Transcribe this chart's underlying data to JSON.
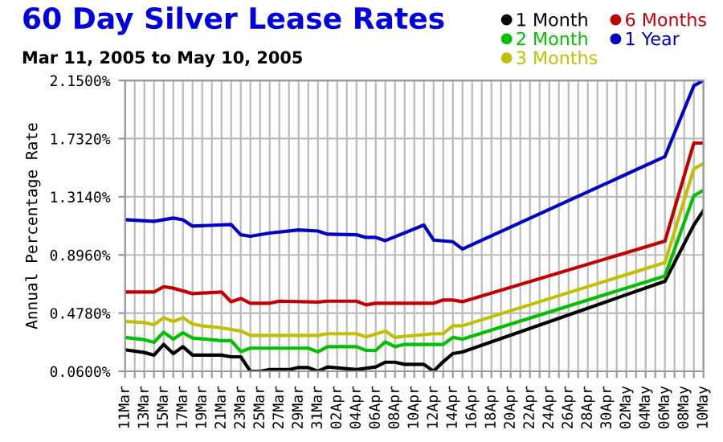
{
  "chart_data": {
    "type": "line",
    "title": "60 Day Silver Lease Rates",
    "subtitle": "Mar 11, 2005 to May 10, 2005",
    "ylabel": "Annual Percentage Rate",
    "xlim": [
      "2005-03-11",
      "2005-05-10"
    ],
    "xticks": [
      {
        "value": "2005-03-11",
        "label": "11Mar"
      },
      {
        "value": "2005-03-12",
        "label": null
      },
      {
        "value": "2005-03-13",
        "label": "13Mar"
      },
      {
        "value": "2005-03-14",
        "label": null
      },
      {
        "value": "2005-03-15",
        "label": "15Mar"
      },
      {
        "value": "2005-03-16",
        "label": null
      },
      {
        "value": "2005-03-17",
        "label": "17Mar"
      },
      {
        "value": "2005-03-18",
        "label": null
      },
      {
        "value": "2005-03-19",
        "label": "19Mar"
      },
      {
        "value": "2005-03-20",
        "label": null
      },
      {
        "value": "2005-03-21",
        "label": "21Mar"
      },
      {
        "value": "2005-03-22",
        "label": null
      },
      {
        "value": "2005-03-23",
        "label": "23Mar"
      },
      {
        "value": "2005-03-24",
        "label": null
      },
      {
        "value": "2005-03-25",
        "label": "25Mar"
      },
      {
        "value": "2005-03-26",
        "label": null
      },
      {
        "value": "2005-03-27",
        "label": "27Mar"
      },
      {
        "value": "2005-03-28",
        "label": null
      },
      {
        "value": "2005-03-29",
        "label": "29Mar"
      },
      {
        "value": "2005-03-30",
        "label": null
      },
      {
        "value": "2005-03-31",
        "label": "31Mar"
      },
      {
        "value": "2005-04-01",
        "label": null
      },
      {
        "value": "2005-04-02",
        "label": "02Apr"
      },
      {
        "value": "2005-04-03",
        "label": null
      },
      {
        "value": "2005-04-04",
        "label": "04Apr"
      },
      {
        "value": "2005-04-05",
        "label": null
      },
      {
        "value": "2005-04-06",
        "label": "06Apr"
      },
      {
        "value": "2005-04-07",
        "label": null
      },
      {
        "value": "2005-04-08",
        "label": "08Apr"
      },
      {
        "value": "2005-04-09",
        "label": null
      },
      {
        "value": "2005-04-10",
        "label": "10Apr"
      },
      {
        "value": "2005-04-11",
        "label": null
      },
      {
        "value": "2005-04-12",
        "label": "12Apr"
      },
      {
        "value": "2005-04-13",
        "label": null
      },
      {
        "value": "2005-04-14",
        "label": "14Apr"
      },
      {
        "value": "2005-04-15",
        "label": null
      },
      {
        "value": "2005-04-16",
        "label": "16Apr"
      },
      {
        "value": "2005-04-17",
        "label": null
      },
      {
        "value": "2005-04-18",
        "label": "18Apr"
      },
      {
        "value": "2005-04-19",
        "label": null
      },
      {
        "value": "2005-04-20",
        "label": "20Apr"
      },
      {
        "value": "2005-04-21",
        "label": null
      },
      {
        "value": "2005-04-22",
        "label": "22Apr"
      },
      {
        "value": "2005-04-23",
        "label": null
      },
      {
        "value": "2005-04-24",
        "label": "24Apr"
      },
      {
        "value": "2005-04-25",
        "label": null
      },
      {
        "value": "2005-04-26",
        "label": "26Apr"
      },
      {
        "value": "2005-04-27",
        "label": null
      },
      {
        "value": "2005-04-28",
        "label": "28Apr"
      },
      {
        "value": "2005-04-29",
        "label": null
      },
      {
        "value": "2005-04-30",
        "label": "30Apr"
      },
      {
        "value": "2005-05-01",
        "label": null
      },
      {
        "value": "2005-05-02",
        "label": "02May"
      },
      {
        "value": "2005-05-03",
        "label": null
      },
      {
        "value": "2005-05-04",
        "label": "04May"
      },
      {
        "value": "2005-05-05",
        "label": null
      },
      {
        "value": "2005-05-06",
        "label": "06May"
      },
      {
        "value": "2005-05-07",
        "label": null
      },
      {
        "value": "2005-05-08",
        "label": "08May"
      },
      {
        "value": "2005-05-09",
        "label": null
      },
      {
        "value": "2005-05-10",
        "label": "10May"
      }
    ],
    "ylim": [
      0.06,
      2.15
    ],
    "yticks": [
      {
        "value": 0.06,
        "label": "0.0600%"
      },
      {
        "value": 0.478,
        "label": "0.4780%"
      },
      {
        "value": 0.896,
        "label": "0.8960%"
      },
      {
        "value": 1.314,
        "label": "1.3140%"
      },
      {
        "value": 1.732,
        "label": "1.7320%"
      },
      {
        "value": 2.15,
        "label": "2.1500%"
      }
    ],
    "grid": true,
    "legend": "top right",
    "marker": "none",
    "line_style": "solid",
    "series": [
      {
        "name": "1 Month",
        "color": "#000000",
        "x": [
          "2005-03-11",
          "2005-03-13",
          "2005-03-14",
          "2005-03-15",
          "2005-03-16",
          "2005-03-17",
          "2005-03-18",
          "2005-03-21",
          "2005-03-22",
          "2005-03-23",
          "2005-03-24",
          "2005-03-25",
          "2005-03-26",
          "2005-03-28",
          "2005-03-29",
          "2005-03-30",
          "2005-03-31",
          "2005-04-01",
          "2005-04-04",
          "2005-04-06",
          "2005-04-07",
          "2005-04-08",
          "2005-04-09",
          "2005-04-11",
          "2005-04-12",
          "2005-04-13",
          "2005-04-14",
          "2005-04-15",
          "2005-05-06",
          "2005-05-09",
          "2005-05-10"
        ],
        "values": [
          0.214,
          0.195,
          0.176,
          0.253,
          0.187,
          0.237,
          0.176,
          0.176,
          0.164,
          0.164,
          0.06,
          0.06,
          0.072,
          0.072,
          0.087,
          0.087,
          0.06,
          0.091,
          0.072,
          0.091,
          0.125,
          0.125,
          0.11,
          0.11,
          0.06,
          0.129,
          0.187,
          0.199,
          0.707,
          1.111,
          1.215
        ]
      },
      {
        "name": "2 Month",
        "color": "#00c000",
        "x": [
          "2005-03-11",
          "2005-03-13",
          "2005-03-14",
          "2005-03-15",
          "2005-03-16",
          "2005-03-17",
          "2005-03-18",
          "2005-03-21",
          "2005-03-22",
          "2005-03-23",
          "2005-03-24",
          "2005-03-30",
          "2005-03-31",
          "2005-04-01",
          "2005-04-04",
          "2005-04-05",
          "2005-04-06",
          "2005-04-07",
          "2005-04-08",
          "2005-04-09",
          "2005-04-13",
          "2005-04-14",
          "2005-04-15",
          "2005-05-06",
          "2005-05-09",
          "2005-05-10"
        ],
        "values": [
          0.303,
          0.287,
          0.268,
          0.341,
          0.291,
          0.337,
          0.299,
          0.28,
          0.28,
          0.202,
          0.226,
          0.226,
          0.199,
          0.237,
          0.237,
          0.21,
          0.21,
          0.272,
          0.237,
          0.253,
          0.253,
          0.303,
          0.291,
          0.745,
          1.322,
          1.361
        ]
      },
      {
        "name": "3 Months",
        "color": "#c0c000",
        "x": [
          "2005-03-11",
          "2005-03-13",
          "2005-03-14",
          "2005-03-15",
          "2005-03-16",
          "2005-03-17",
          "2005-03-18",
          "2005-03-19",
          "2005-03-21",
          "2005-03-23",
          "2005-03-24",
          "2005-03-31",
          "2005-04-01",
          "2005-04-04",
          "2005-04-05",
          "2005-04-07",
          "2005-04-08",
          "2005-04-09",
          "2005-04-12",
          "2005-04-13",
          "2005-04-14",
          "2005-04-15",
          "2005-05-06",
          "2005-05-09",
          "2005-05-10"
        ],
        "values": [
          0.418,
          0.41,
          0.395,
          0.445,
          0.418,
          0.445,
          0.399,
          0.387,
          0.372,
          0.349,
          0.318,
          0.318,
          0.33,
          0.33,
          0.307,
          0.349,
          0.303,
          0.311,
          0.33,
          0.33,
          0.387,
          0.387,
          0.841,
          1.515,
          1.553
        ]
      },
      {
        "name": "6 Months",
        "color": "#c00000",
        "x": [
          "2005-03-11",
          "2005-03-14",
          "2005-03-15",
          "2005-03-16",
          "2005-03-18",
          "2005-03-21",
          "2005-03-22",
          "2005-03-23",
          "2005-03-24",
          "2005-03-26",
          "2005-03-27",
          "2005-03-31",
          "2005-04-01",
          "2005-04-04",
          "2005-04-05",
          "2005-04-06",
          "2005-04-12",
          "2005-04-13",
          "2005-04-14",
          "2005-04-15",
          "2005-05-06",
          "2005-05-09",
          "2005-05-10"
        ],
        "values": [
          0.63,
          0.63,
          0.668,
          0.657,
          0.618,
          0.63,
          0.56,
          0.583,
          0.549,
          0.549,
          0.564,
          0.557,
          0.564,
          0.564,
          0.537,
          0.549,
          0.549,
          0.572,
          0.572,
          0.56,
          0.995,
          1.7,
          1.7
        ]
      },
      {
        "name": "1 Year",
        "color": "#0000c0",
        "x": [
          "2005-03-11",
          "2005-03-14",
          "2005-03-15",
          "2005-03-16",
          "2005-03-17",
          "2005-03-18",
          "2005-03-22",
          "2005-03-23",
          "2005-03-24",
          "2005-03-26",
          "2005-03-29",
          "2005-03-31",
          "2005-04-01",
          "2005-04-04",
          "2005-04-05",
          "2005-04-06",
          "2005-04-07",
          "2005-04-11",
          "2005-04-12",
          "2005-04-14",
          "2005-04-15",
          "2005-05-06",
          "2005-05-09",
          "2005-05-10"
        ],
        "values": [
          1.149,
          1.138,
          1.149,
          1.161,
          1.149,
          1.103,
          1.115,
          1.041,
          1.03,
          1.053,
          1.076,
          1.068,
          1.045,
          1.041,
          1.022,
          1.022,
          0.999,
          1.111,
          1.003,
          0.991,
          0.938,
          1.603,
          2.112,
          2.15
        ]
      }
    ]
  }
}
